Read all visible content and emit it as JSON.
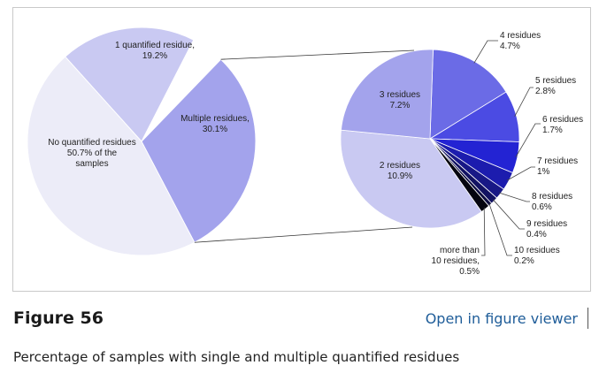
{
  "figure": {
    "label": "Figure 56",
    "viewer_link": "Open in figure viewer",
    "caption": "Percentage of samples with single and multiple quantified residues"
  },
  "chart_data": [
    {
      "type": "pie",
      "slices": [
        {
          "label": [
            "No quantified residues",
            "50.7% of the",
            "samples"
          ],
          "value": 50.7,
          "color": "#ececf8"
        },
        {
          "label": [
            "1 quantified residue,",
            "19.2%"
          ],
          "value": 19.2,
          "color": "#c9c9f2"
        },
        {
          "label": [
            "Multiple residues,",
            "30.1%"
          ],
          "value": 30.1,
          "color": "#a3a3ec"
        }
      ]
    },
    {
      "type": "pie",
      "breakdown_of": "Multiple residues,",
      "slices": [
        {
          "label": [
            "4 residues",
            "4.7%"
          ],
          "value": 4.7,
          "color": "#6b6be6"
        },
        {
          "label": [
            "5 residues",
            "2.8%"
          ],
          "value": 2.8,
          "color": "#4b4be3"
        },
        {
          "label": [
            "6 residues",
            "1.7%"
          ],
          "value": 1.7,
          "color": "#2323d3"
        },
        {
          "label": [
            "7 residues",
            "1%"
          ],
          "value": 1.0,
          "color": "#1c1cae"
        },
        {
          "label": [
            "8 residues",
            "0.6%"
          ],
          "value": 0.6,
          "color": "#181886"
        },
        {
          "label": [
            "9 residues",
            "0.4%"
          ],
          "value": 0.4,
          "color": "#121262"
        },
        {
          "label": [
            "10 residues",
            "0.2%"
          ],
          "value": 0.2,
          "color": "#0c0c40"
        },
        {
          "label": [
            "more than",
            "10 residues,",
            "0.5%"
          ],
          "value": 0.5,
          "color": "#050510"
        },
        {
          "label": [
            "2 residues",
            "10.9%"
          ],
          "value": 10.9,
          "color": "#c9c9f2"
        },
        {
          "label": [
            "3 residues",
            "7.2%"
          ],
          "value": 7.2,
          "color": "#a3a3ec"
        }
      ]
    }
  ]
}
